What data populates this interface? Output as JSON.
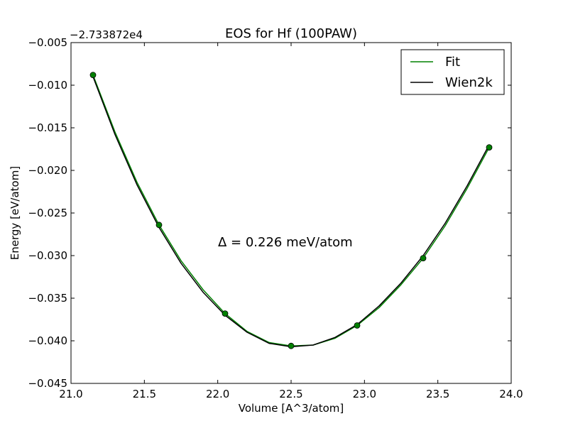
{
  "chart_data": {
    "type": "line",
    "title": "EOS for Hf (100PAW)",
    "xlabel": "Volume [A^3/atom]",
    "ylabel": "Energy [eV/atom]",
    "offset_text": "−2.733872e4",
    "xlim": [
      21.0,
      24.0
    ],
    "ylim": [
      -0.045,
      -0.005
    ],
    "xticks": [
      21.0,
      21.5,
      22.0,
      22.5,
      23.0,
      23.5,
      24.0
    ],
    "xtick_labels": [
      "21.0",
      "21.5",
      "22.0",
      "22.5",
      "23.0",
      "23.5",
      "24.0"
    ],
    "yticks": [
      -0.005,
      -0.01,
      -0.015,
      -0.02,
      -0.025,
      -0.03,
      -0.035,
      -0.04,
      -0.045
    ],
    "ytick_labels": [
      "−0.005",
      "−0.010",
      "−0.015",
      "−0.020",
      "−0.025",
      "−0.030",
      "−0.035",
      "−0.040",
      "−0.045"
    ],
    "annotation": "Δ = 0.226 meV/atom",
    "legend_position": "top-right",
    "grid": false,
    "points": {
      "color": "#008000",
      "x": [
        21.15,
        21.6,
        22.05,
        22.5,
        22.95,
        23.4,
        23.85
      ],
      "y": [
        -0.0088,
        -0.0264,
        -0.0368,
        -0.0406,
        -0.0382,
        -0.0303,
        -0.0173
      ]
    },
    "series": [
      {
        "name": "Fit",
        "color": "#008000",
        "x": [
          21.15,
          21.3,
          21.45,
          21.6,
          21.75,
          21.9,
          22.05,
          22.2,
          22.35,
          22.5,
          22.65,
          22.8,
          22.95,
          23.1,
          23.25,
          23.4,
          23.55,
          23.7,
          23.85
        ],
        "y": [
          -0.0088,
          -0.0155,
          -0.0214,
          -0.0264,
          -0.0306,
          -0.034,
          -0.0368,
          -0.0389,
          -0.0402,
          -0.0406,
          -0.0405,
          -0.0397,
          -0.0382,
          -0.0361,
          -0.0334,
          -0.0303,
          -0.0265,
          -0.0221,
          -0.0173
        ]
      },
      {
        "name": "Wien2k",
        "color": "#000000",
        "x": [
          21.15,
          21.3,
          21.45,
          21.6,
          21.75,
          21.9,
          22.05,
          22.2,
          22.35,
          22.5,
          22.65,
          22.8,
          22.95,
          23.1,
          23.25,
          23.4,
          23.55,
          23.7,
          23.85
        ],
        "y": [
          -0.009,
          -0.0158,
          -0.0217,
          -0.0267,
          -0.0309,
          -0.0343,
          -0.037,
          -0.039,
          -0.0403,
          -0.0407,
          -0.0405,
          -0.0396,
          -0.0381,
          -0.0359,
          -0.0332,
          -0.03,
          -0.0262,
          -0.0218,
          -0.017
        ]
      }
    ]
  }
}
